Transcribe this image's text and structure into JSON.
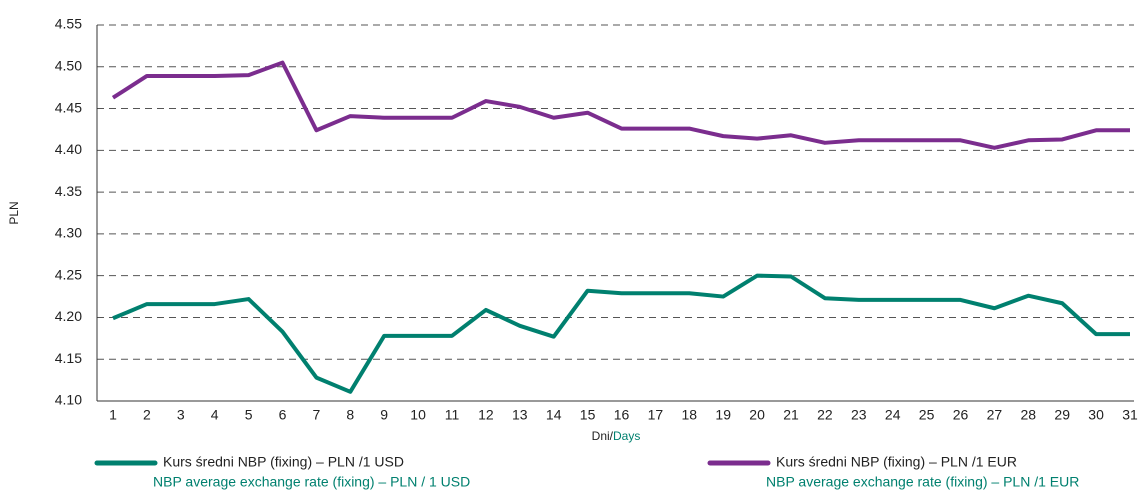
{
  "chart_data": {
    "type": "line",
    "y_label": "PLN",
    "x_label": {
      "pl": "Dni/",
      "en": "Days"
    },
    "categories": [
      "1",
      "2",
      "3",
      "4",
      "5",
      "6",
      "7",
      "8",
      "9",
      "10",
      "11",
      "12",
      "13",
      "14",
      "15",
      "16",
      "17",
      "18",
      "19",
      "20",
      "21",
      "22",
      "23",
      "24",
      "25",
      "26",
      "27",
      "28",
      "29",
      "30",
      "31"
    ],
    "series": [
      {
        "name": "Kurs średni NBP (fixing) – PLN /1 USD",
        "name_en": "NBP average exchange rate (fixing) – PLN / 1 USD",
        "color": "#00806f",
        "values": [
          4.199,
          4.216,
          4.216,
          4.216,
          4.222,
          4.183,
          4.128,
          4.111,
          4.178,
          4.178,
          4.178,
          4.209,
          4.19,
          4.177,
          4.232,
          4.229,
          4.229,
          4.229,
          4.225,
          4.25,
          4.249,
          4.223,
          4.221,
          4.221,
          4.221,
          4.221,
          4.211,
          4.226,
          4.217,
          4.18,
          4.18
        ]
      },
      {
        "name": "Kurs średni NBP (fixing) – PLN /1 EUR",
        "name_en": "NBP average exchange rate (fixing) – PLN /1 EUR",
        "color": "#7b2d8e",
        "values": [
          4.463,
          4.489,
          4.489,
          4.489,
          4.49,
          4.505,
          4.424,
          4.441,
          4.439,
          4.439,
          4.439,
          4.459,
          4.452,
          4.439,
          4.445,
          4.426,
          4.426,
          4.426,
          4.417,
          4.414,
          4.418,
          4.409,
          4.412,
          4.412,
          4.412,
          4.412,
          4.403,
          4.412,
          4.413,
          4.424,
          4.424
        ]
      }
    ],
    "ylim": [
      4.1,
      4.55
    ],
    "yticks": [
      {
        "value": 4.1,
        "label": "4.10"
      },
      4.15,
      {
        "value": 4.2,
        "label": "4.20"
      },
      4.25,
      {
        "value": 4.3,
        "label": "4.30"
      },
      4.35,
      {
        "value": 4.4,
        "label": "4.40"
      },
      4.45,
      {
        "value": 4.5,
        "label": "4.50"
      },
      4.55
    ],
    "grid": true
  }
}
